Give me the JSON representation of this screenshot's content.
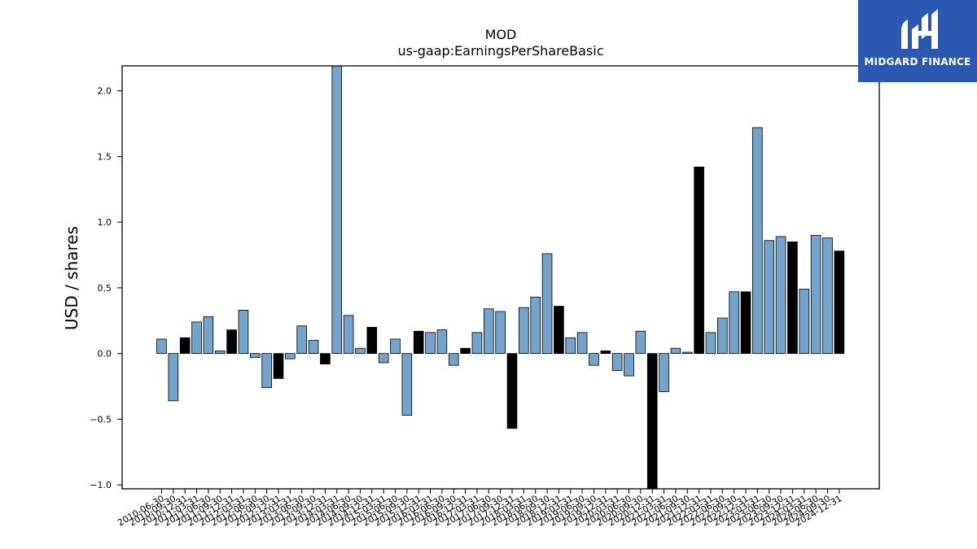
{
  "brand": {
    "name": "MIDGARD FINANCE",
    "logo_icon": "midgard-mh-monogram",
    "color": "#2a58b0"
  },
  "chart_data": {
    "type": "bar",
    "title": "MOD",
    "subtitle": "us-gaap:EarningsPerShareBasic",
    "xlabel": "",
    "ylabel": "USD / shares",
    "ylim": [
      -1.03,
      2.19
    ],
    "yticks": [
      -1.0,
      -0.5,
      0.0,
      0.5,
      1.0,
      1.5,
      2.0
    ],
    "ytick_labels": [
      "−1.0",
      "−0.5",
      "0.0",
      "0.5",
      "1.0",
      "1.5",
      "2.0"
    ],
    "grid": false,
    "colors": {
      "quarter": "#74a3cc",
      "fiscal_year": "#000000",
      "edge": "#000000"
    },
    "categories": [
      "2010-06-30",
      "2010-09-30",
      "2010-12-31",
      "2011-03-31",
      "2011-06-30",
      "2011-09-30",
      "2011-12-31",
      "2012-03-31",
      "2012-06-30",
      "2012-09-30",
      "2012-12-31",
      "2013-03-31",
      "2013-06-30",
      "2013-09-30",
      "2013-12-31",
      "2014-03-31",
      "2014-06-30",
      "2014-09-30",
      "2014-12-31",
      "2015-03-31",
      "2015-06-30",
      "2015-09-30",
      "2015-12-31",
      "2016-03-31",
      "2016-06-30",
      "2016-09-30",
      "2016-12-31",
      "2017-03-31",
      "2017-06-30",
      "2017-09-30",
      "2017-12-31",
      "2018-03-31",
      "2018-06-30",
      "2018-09-30",
      "2018-12-31",
      "2019-03-31",
      "2019-06-30",
      "2019-09-30",
      "2019-12-31",
      "2020-03-31",
      "2020-06-30",
      "2020-09-30",
      "2020-12-31",
      "2021-03-31",
      "2021-06-30",
      "2021-09-30",
      "2021-12-31",
      "2022-03-31",
      "2022-06-30",
      "2022-09-30",
      "2022-12-31",
      "2023-03-31",
      "2023-06-30",
      "2023-09-30",
      "2023-12-31",
      "2024-03-31",
      "2024-06-30",
      "2024-09-30",
      "2024-12-31"
    ],
    "values": [
      0.11,
      -0.36,
      0.12,
      0.24,
      0.28,
      0.02,
      0.18,
      0.33,
      -0.03,
      -0.26,
      -0.19,
      -0.04,
      0.21,
      0.1,
      -0.08,
      2.19,
      0.29,
      0.04,
      0.2,
      -0.07,
      0.11,
      -0.47,
      0.17,
      0.16,
      0.18,
      -0.09,
      0.04,
      0.16,
      0.34,
      0.32,
      -0.57,
      0.35,
      0.43,
      0.76,
      0.36,
      0.12,
      0.16,
      -0.09,
      0.02,
      -0.13,
      -0.17,
      0.17,
      -1.03,
      -0.29,
      0.04,
      0.01,
      1.42,
      0.16,
      0.27,
      0.47,
      0.47,
      1.72,
      0.86,
      0.89,
      0.85,
      0.49,
      0.9,
      0.88,
      0.78
    ],
    "annual": [
      false,
      false,
      true,
      false,
      false,
      false,
      true,
      false,
      false,
      false,
      true,
      false,
      false,
      false,
      true,
      false,
      false,
      false,
      true,
      false,
      false,
      false,
      true,
      false,
      false,
      false,
      true,
      false,
      false,
      false,
      true,
      false,
      false,
      false,
      true,
      false,
      false,
      false,
      true,
      false,
      false,
      false,
      true,
      false,
      false,
      false,
      true,
      false,
      false,
      false,
      true,
      false,
      false,
      false,
      true,
      false,
      false,
      false,
      true
    ]
  }
}
